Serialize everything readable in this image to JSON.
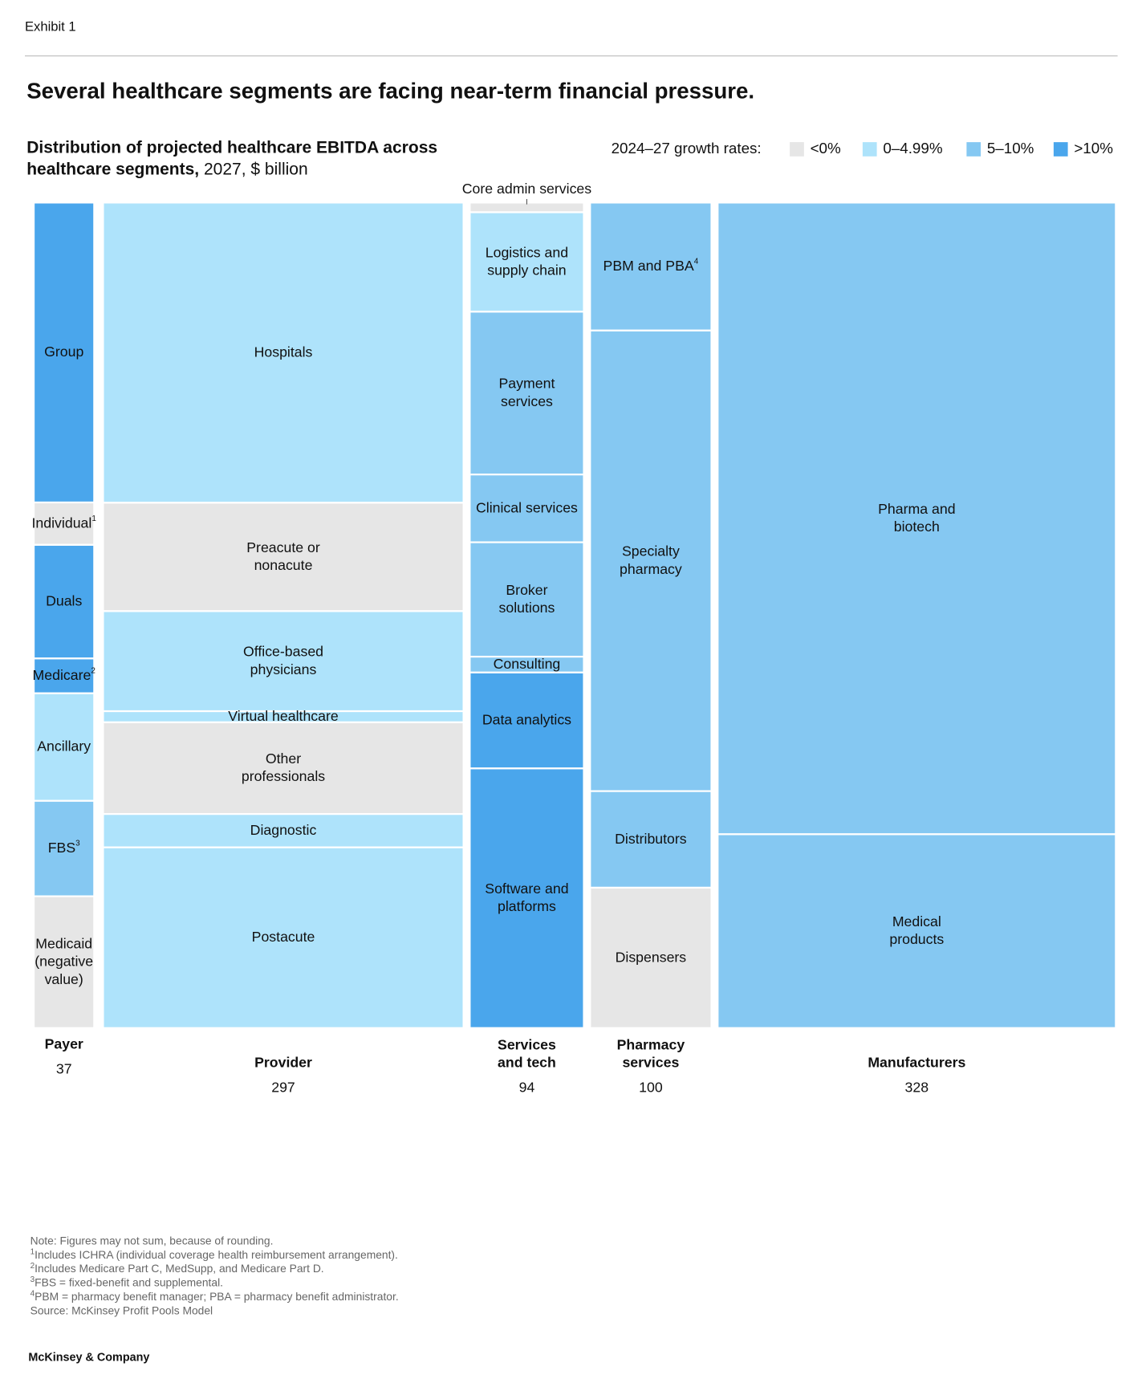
{
  "chart_data": {
    "type": "marimekko",
    "exhibit": "Exhibit 1",
    "title": "Several healthcare segments are facing near-term financial pressure.",
    "subtitle": [
      "Distribution of projected healthcare EBITDA across",
      "healthcare segments,"
    ],
    "subtitle_unit": "2027, $ billion",
    "legend_title": "2024–27 growth rates:",
    "legend": [
      {
        "label": "<0%",
        "color": "#e6e6e6"
      },
      {
        "label": "0–4.99%",
        "color": "#aee3fb"
      },
      {
        "label": "5–10%",
        "color": "#85c8f2"
      },
      {
        "label": ">10%",
        "color": "#4aa6ec"
      }
    ],
    "columns": [
      {
        "name": [
          "Payer"
        ],
        "total": 37,
        "segments": [
          {
            "label": [
              "Group"
            ],
            "value": 19.8,
            "color": "#4aa6ec"
          },
          {
            "label": [
              "Individual"
            ],
            "note": "1",
            "value": 2.8,
            "color": "#e6e6e6"
          },
          {
            "label": [
              "Duals"
            ],
            "value": 7.5,
            "color": "#4aa6ec"
          },
          {
            "label": [
              "Medicare"
            ],
            "note": "2",
            "value": 2.3,
            "color": "#4aa6ec"
          },
          {
            "label": [
              "Ancillary"
            ],
            "value": 7.1,
            "color": "#aee3fb"
          },
          {
            "label": [
              "FBS"
            ],
            "note": "3",
            "value": 6.3,
            "color": "#85c8f2"
          },
          {
            "label": [
              "Medicaid",
              "(negative",
              "value)"
            ],
            "value": -8.7,
            "color": "#e6e6e6"
          }
        ]
      },
      {
        "name": [
          "Provider"
        ],
        "total": 297,
        "segments": [
          {
            "label": [
              "Hospitals"
            ],
            "value": 108,
            "color": "#aee3fb"
          },
          {
            "label": [
              "Preacute or",
              "nonacute"
            ],
            "value": 39,
            "color": "#e6e6e6"
          },
          {
            "label": [
              "Office-based",
              "physicians"
            ],
            "value": 36,
            "color": "#aee3fb"
          },
          {
            "label": [
              "Virtual healthcare"
            ],
            "value": 4,
            "color": "#aee3fb"
          },
          {
            "label": [
              "Other",
              "professionals"
            ],
            "value": 33,
            "color": "#e6e6e6"
          },
          {
            "label": [
              "Diagnostic"
            ],
            "value": 12,
            "color": "#aee3fb"
          },
          {
            "label": [
              "Postacute"
            ],
            "value": 65,
            "color": "#aee3fb"
          }
        ]
      },
      {
        "name": [
          "Services",
          "and tech"
        ],
        "total": 94,
        "segments": [
          {
            "label": [
              "Core admin services"
            ],
            "value": 1.1,
            "color": "#e6e6e6",
            "label_outside": true
          },
          {
            "label": [
              "Logistics and",
              "supply chain"
            ],
            "value": 11.3,
            "color": "#aee3fb"
          },
          {
            "label": [
              "Payment",
              "services"
            ],
            "value": 18.5,
            "color": "#85c8f2"
          },
          {
            "label": [
              "Clinical services"
            ],
            "value": 7.7,
            "color": "#85c8f2"
          },
          {
            "label": [
              "Broker",
              "solutions"
            ],
            "value": 13,
            "color": "#85c8f2"
          },
          {
            "label": [
              "Consulting"
            ],
            "value": 1.8,
            "color": "#85c8f2"
          },
          {
            "label": [
              "Data analytics"
            ],
            "value": 10.9,
            "color": "#4aa6ec"
          },
          {
            "label": [
              "Software and",
              "platforms"
            ],
            "value": 29.5,
            "color": "#4aa6ec"
          }
        ]
      },
      {
        "name": [
          "Pharmacy",
          "services"
        ],
        "total": 100,
        "segments": [
          {
            "label": [
              "PBM and PBA"
            ],
            "note": "4",
            "value": 15.5,
            "color": "#85c8f2"
          },
          {
            "label": [
              "Specialty",
              "pharmacy"
            ],
            "value": 55.8,
            "color": "#85c8f2"
          },
          {
            "label": [
              "Distributors"
            ],
            "value": 11.7,
            "color": "#85c8f2"
          },
          {
            "label": [
              "Dispensers"
            ],
            "value": 17,
            "color": "#e6e6e6"
          }
        ]
      },
      {
        "name": [
          "Manufacturers"
        ],
        "total": 328,
        "segments": [
          {
            "label": [
              "Pharma and",
              "biotech"
            ],
            "value": 251,
            "color": "#85c8f2"
          },
          {
            "label": [
              "Medical",
              "products"
            ],
            "value": 77,
            "color": "#85c8f2"
          }
        ]
      }
    ],
    "footnotes": [
      {
        "text": "Note: Figures may not sum, because of rounding."
      },
      {
        "mark": "1",
        "text": "Includes ICHRA (individual coverage health reimbursement arrangement)."
      },
      {
        "mark": "2",
        "text": "Includes Medicare Part C, MedSupp, and Medicare Part D."
      },
      {
        "mark": "3",
        "text": "FBS = fixed-benefit and supplemental."
      },
      {
        "mark": "4",
        "text": "PBM = pharmacy benefit manager; PBA = pharmacy benefit administrator."
      },
      {
        "text": "Source: McKinsey Profit Pools Model"
      }
    ],
    "brand": "McKinsey & Company"
  }
}
